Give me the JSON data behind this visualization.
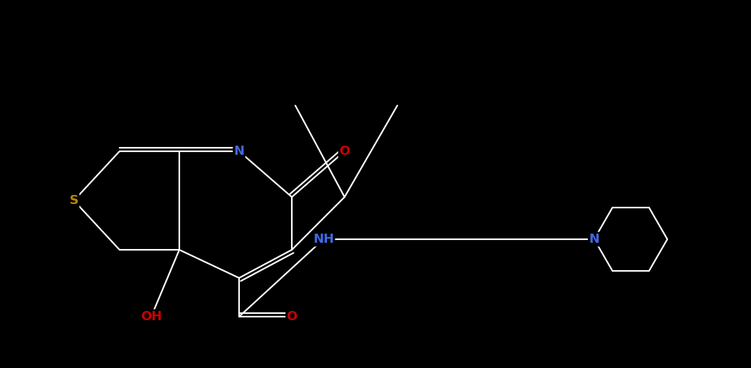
{
  "background_color": "#000000",
  "bond_color": "#ffffff",
  "atom_colors": {
    "S": "#b8860b",
    "N": "#4169e1",
    "O": "#cc0000",
    "C": "#ffffff"
  },
  "figsize": [
    10.68,
    5.23
  ],
  "dpi": 100,
  "lw": 1.6,
  "fontsize": 13
}
